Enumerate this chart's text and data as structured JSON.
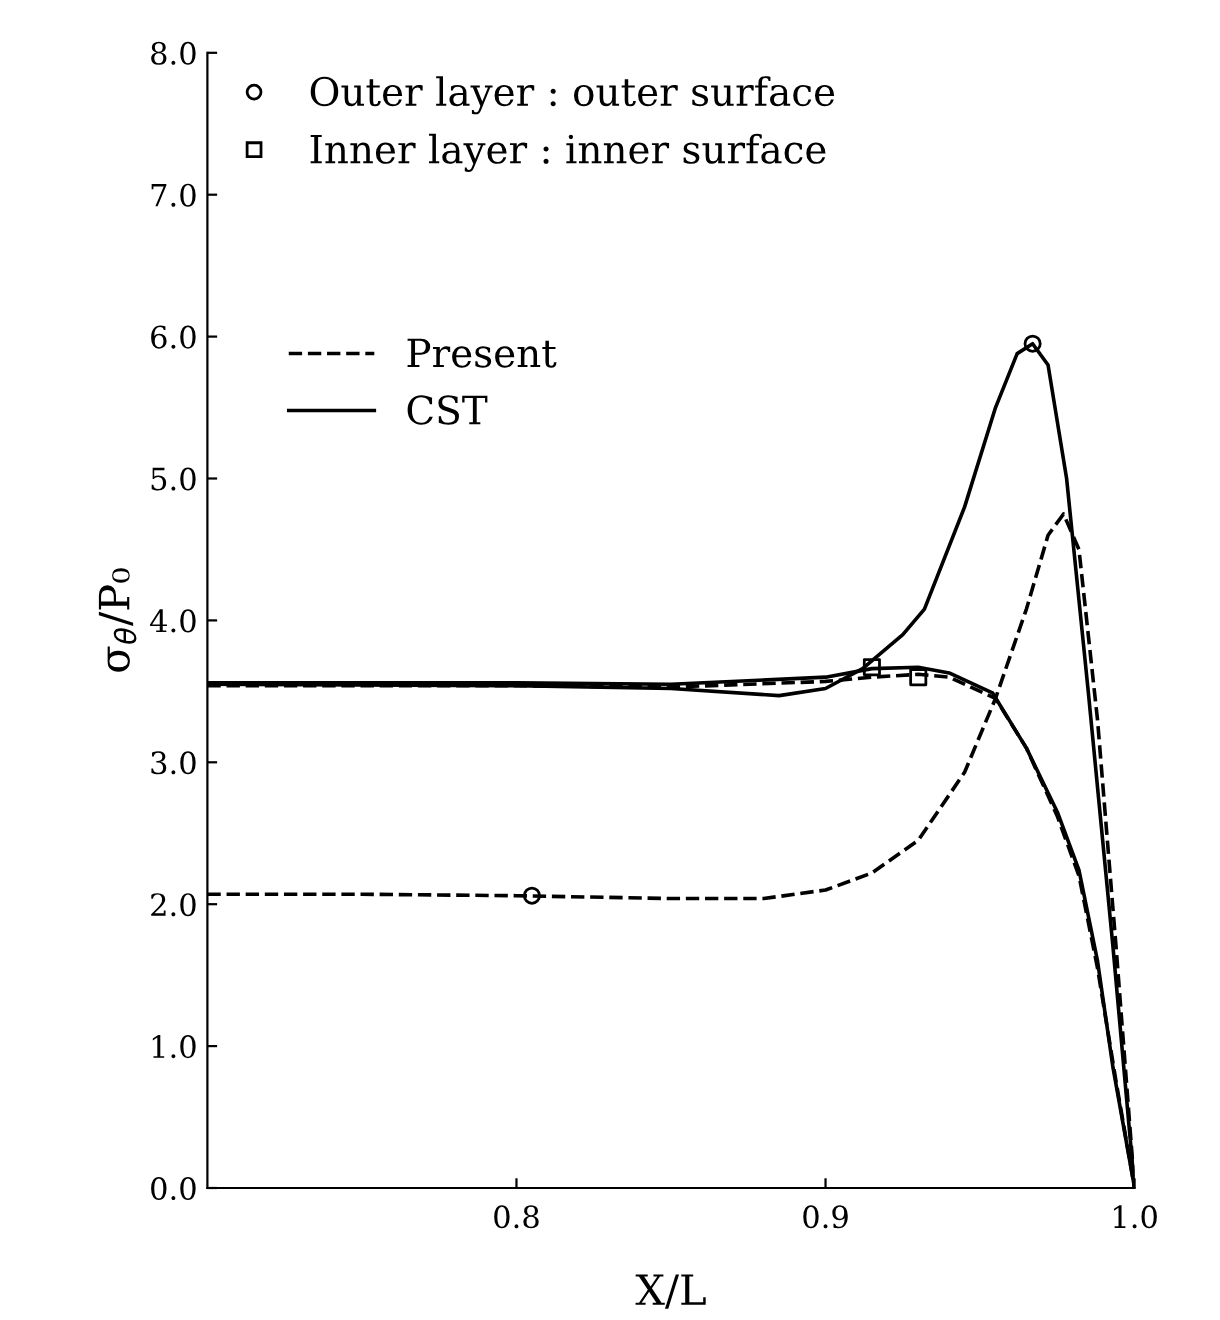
{
  "chart_data": {
    "type": "line",
    "xlabel": "X/L",
    "ylabel": "σ$_{θ}$/P₀",
    "xlim": [
      0.7,
      1.0
    ],
    "ylim": [
      0,
      8
    ],
    "xticks": [
      {
        "value": 0.8,
        "label": "0.8"
      },
      {
        "value": 0.9,
        "label": "0.9"
      },
      {
        "value": 1.0,
        "label": "1.0"
      }
    ],
    "yticks": [
      {
        "value": 0,
        "label": "0.0"
      },
      {
        "value": 1,
        "label": "1.0"
      },
      {
        "value": 2,
        "label": "2.0"
      },
      {
        "value": 3,
        "label": "3.0"
      },
      {
        "value": 4,
        "label": "4.0"
      },
      {
        "value": 5,
        "label": "5.0"
      },
      {
        "value": 6,
        "label": "6.0"
      },
      {
        "value": 7,
        "label": "7.0"
      },
      {
        "value": 8,
        "label": "8.0"
      }
    ],
    "grid": false,
    "legend": "top left",
    "series": [
      {
        "name": "Outer layer : outer surface",
        "type": "scatter",
        "marker": "circle",
        "color": "#000000",
        "x": [
          0.805,
          0.967
        ],
        "values": [
          2.06,
          5.95
        ]
      },
      {
        "name": "Inner layer : inner surface",
        "type": "scatter",
        "marker": "square",
        "color": "#000000",
        "x": [
          0.915,
          0.93
        ],
        "values": [
          3.67,
          3.6
        ]
      },
      {
        "name": "Present",
        "line_style": "dashed",
        "color": "#000000",
        "x": [
          0.7,
          0.75,
          0.8,
          0.85,
          0.88,
          0.9,
          0.915,
          0.93,
          0.945,
          0.955,
          0.965,
          0.972,
          0.977,
          0.982,
          0.988,
          0.994,
          1.0
        ],
        "values": [
          2.07,
          2.07,
          2.06,
          2.04,
          2.04,
          2.1,
          2.22,
          2.45,
          2.93,
          3.45,
          4.08,
          4.6,
          4.75,
          4.5,
          3.3,
          1.7,
          0
        ]
      },
      {
        "name": "CST",
        "line_style": "solid",
        "color": "#000000",
        "x": [
          0.7,
          0.8,
          0.85,
          0.885,
          0.9,
          0.912,
          0.925,
          0.932,
          0.945,
          0.955,
          0.962,
          0.967,
          0.972,
          0.978,
          0.985,
          0.993,
          1.0
        ],
        "values": [
          3.55,
          3.54,
          3.52,
          3.47,
          3.52,
          3.66,
          3.9,
          4.08,
          4.8,
          5.5,
          5.88,
          5.95,
          5.8,
          5.0,
          3.5,
          1.7,
          0
        ]
      },
      {
        "line_style": "solid",
        "color": "#000000",
        "x": [
          0.7,
          0.8,
          0.85,
          0.9,
          0.915,
          0.93,
          0.94,
          0.954,
          0.965,
          0.975,
          0.982,
          0.988,
          0.993,
          1.0
        ],
        "values": [
          3.56,
          3.56,
          3.55,
          3.6,
          3.66,
          3.67,
          3.63,
          3.49,
          3.1,
          2.65,
          2.24,
          1.6,
          0.85,
          0
        ]
      },
      {
        "line_style": "dashed",
        "color": "#000000",
        "x": [
          0.7,
          0.8,
          0.85,
          0.9,
          0.915,
          0.93,
          0.94,
          0.955,
          0.965,
          0.975,
          0.982,
          0.988,
          0.994,
          1.0
        ],
        "values": [
          3.54,
          3.54,
          3.53,
          3.57,
          3.6,
          3.62,
          3.6,
          3.45,
          3.1,
          2.62,
          2.2,
          1.55,
          0.75,
          0
        ]
      }
    ]
  }
}
